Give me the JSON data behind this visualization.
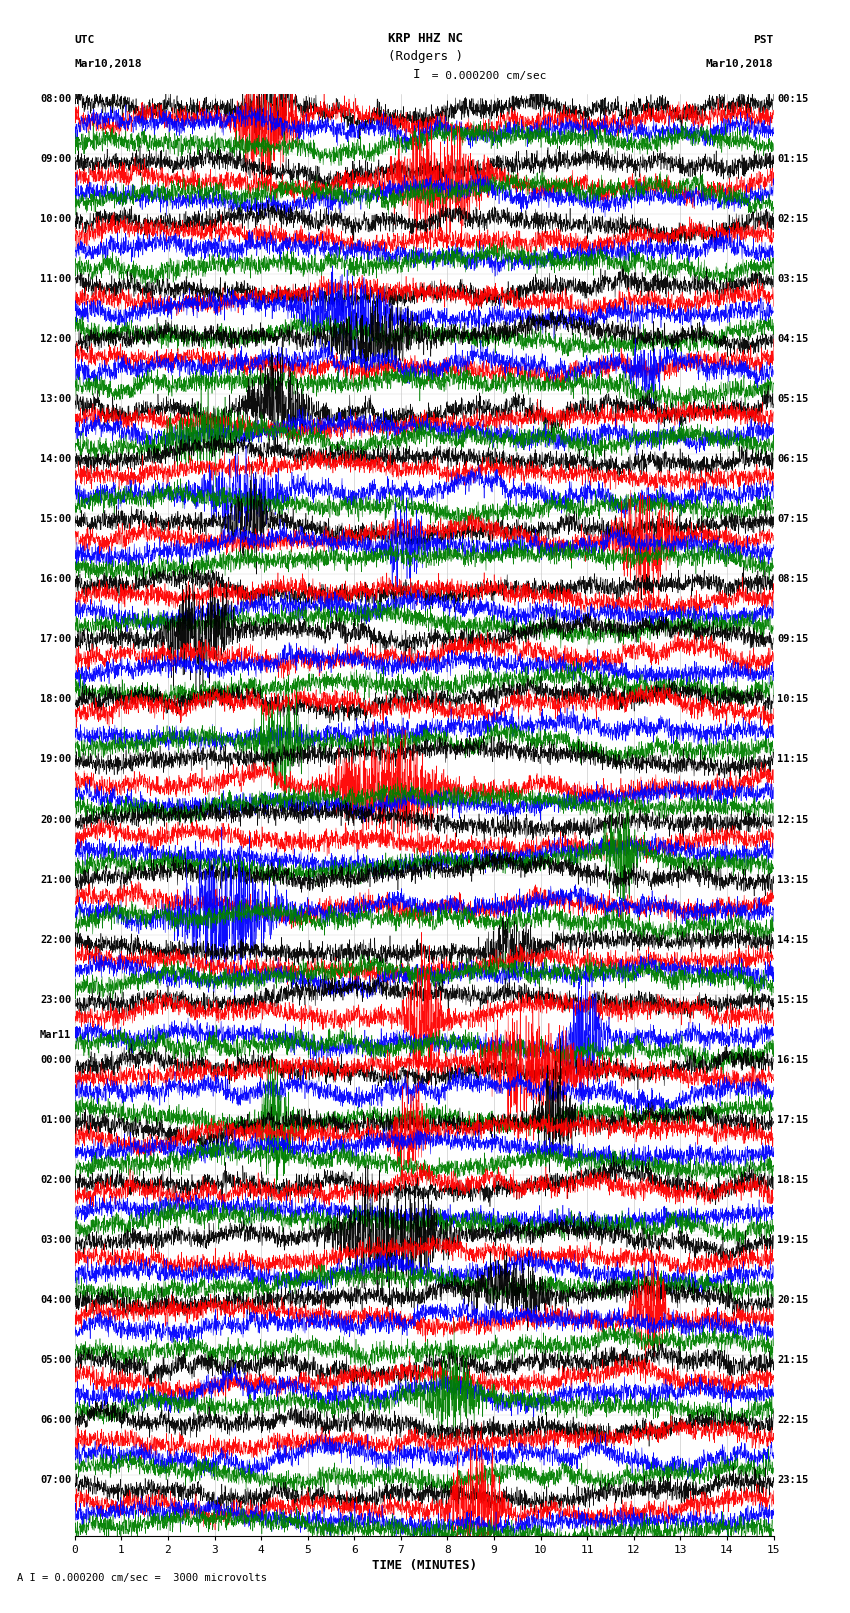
{
  "title_line1": "KRP HHZ NC",
  "title_line2": "(Rodgers )",
  "scale_label": "= 0.000200 cm/sec",
  "scale_tick": "I",
  "bottom_label": "A I = 0.000200 cm/sec =  3000 microvolts",
  "xlabel": "TIME (MINUTES)",
  "utc_label": "UTC",
  "utc_date": "Mar10,2018",
  "pst_label": "PST",
  "pst_date": "Mar10,2018",
  "left_times": [
    "08:00",
    "09:00",
    "10:00",
    "11:00",
    "12:00",
    "13:00",
    "14:00",
    "15:00",
    "16:00",
    "17:00",
    "18:00",
    "19:00",
    "20:00",
    "21:00",
    "22:00",
    "23:00",
    "00:00",
    "01:00",
    "02:00",
    "03:00",
    "04:00",
    "05:00",
    "06:00",
    "07:00"
  ],
  "mar11_row": 16,
  "right_times": [
    "00:15",
    "01:15",
    "02:15",
    "03:15",
    "04:15",
    "05:15",
    "06:15",
    "07:15",
    "08:15",
    "09:15",
    "10:15",
    "11:15",
    "12:15",
    "13:15",
    "14:15",
    "15:15",
    "16:15",
    "17:15",
    "18:15",
    "19:15",
    "20:15",
    "21:15",
    "22:15",
    "23:15"
  ],
  "n_rows": 24,
  "traces_per_row": 4,
  "minutes_per_row": 15,
  "colors": [
    "black",
    "red",
    "blue",
    "green"
  ],
  "bg_color": "white",
  "fig_width": 8.5,
  "fig_height": 16.13,
  "dpi": 100,
  "xmin": 0,
  "xmax": 15,
  "xticks": [
    0,
    1,
    2,
    3,
    4,
    5,
    6,
    7,
    8,
    9,
    10,
    11,
    12,
    13,
    14,
    15
  ]
}
